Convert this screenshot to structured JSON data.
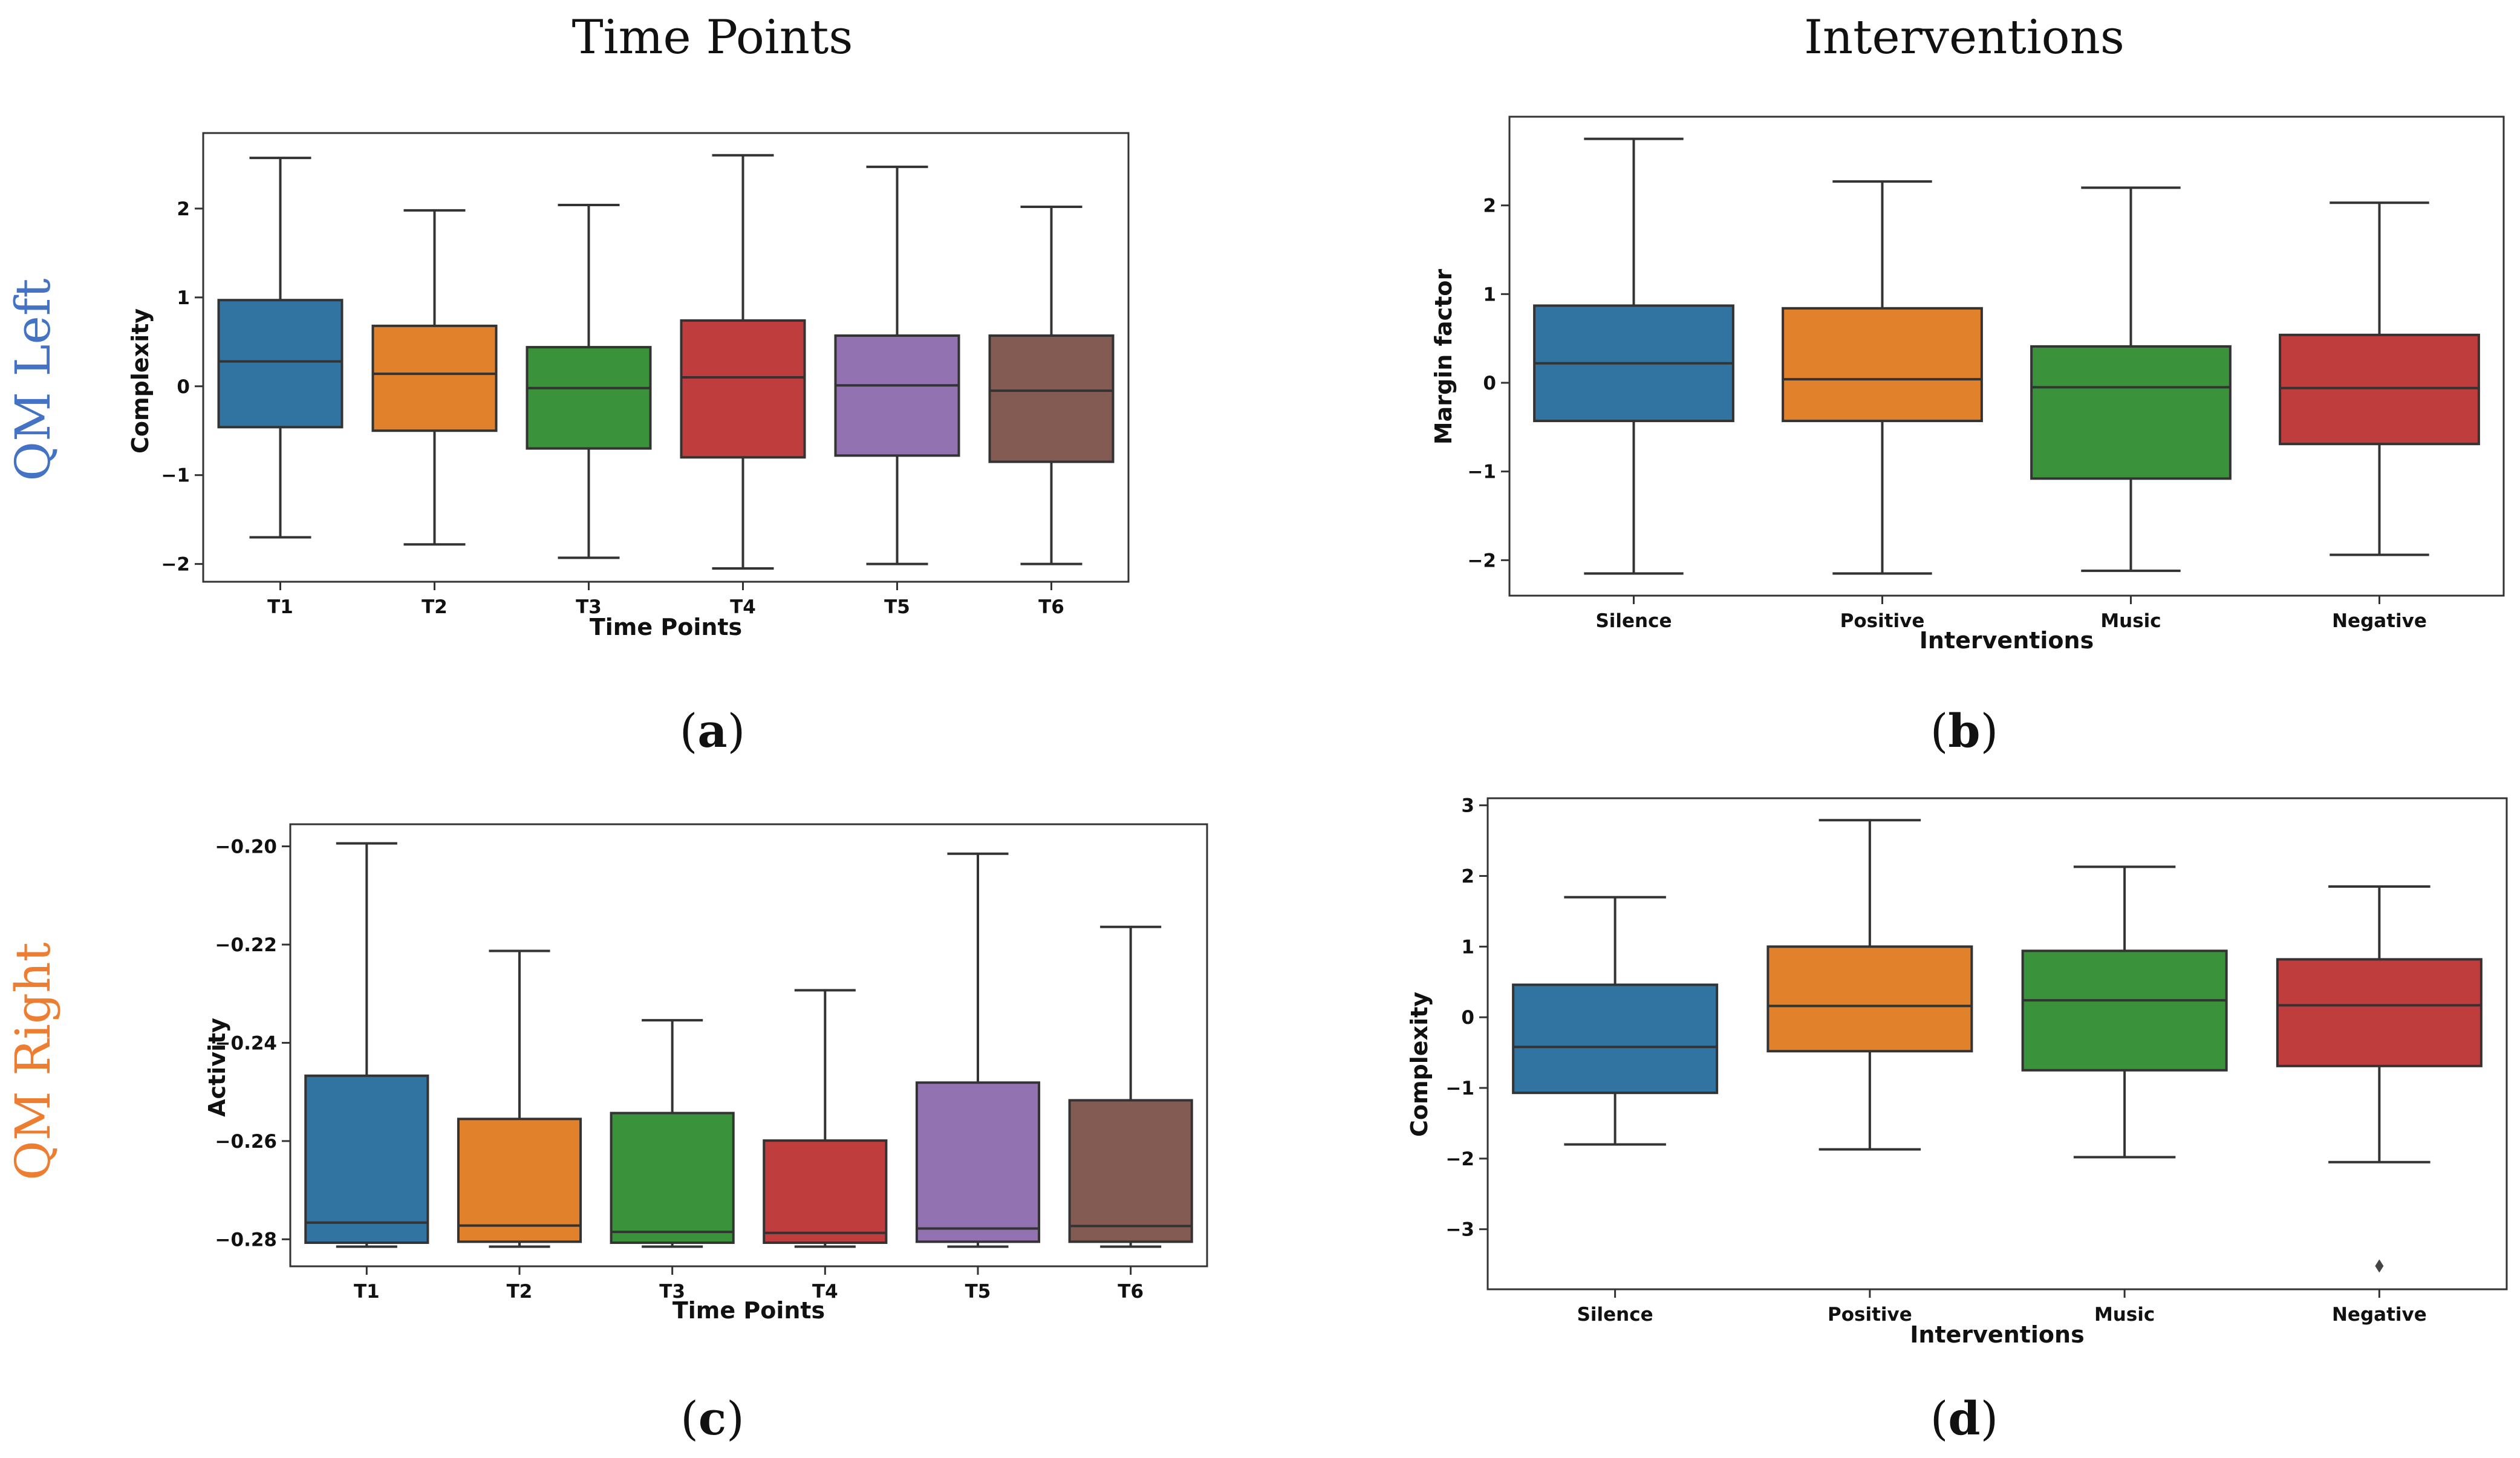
{
  "column_titles": [
    "Time Points",
    "Interventions"
  ],
  "row_labels": [
    {
      "text": "QM Left",
      "color": "#4472c4"
    },
    {
      "text": "QM Right",
      "color": "#ed7d31"
    }
  ],
  "panel_labels": [
    {
      "pre": "(",
      "letter": "a",
      "post": ")"
    },
    {
      "pre": "(",
      "letter": "b",
      "post": ")"
    },
    {
      "pre": "(",
      "letter": "c",
      "post": ")"
    },
    {
      "pre": "(",
      "letter": "d",
      "post": ")"
    }
  ],
  "palette": [
    "#3274a1",
    "#e1812c",
    "#3a923a",
    "#c03d3e",
    "#9372b2",
    "#845b53"
  ],
  "chart_data": [
    {
      "id": "a",
      "type": "box",
      "xlabel": "Time Points",
      "ylabel": "Complexity",
      "ylim": [
        -2.2,
        2.85
      ],
      "yticks": [
        -2,
        -1,
        0,
        1,
        2
      ],
      "yticklabels": [
        "−2",
        "−1",
        "0",
        "1",
        "2"
      ],
      "categories": [
        "T1",
        "T2",
        "T3",
        "T4",
        "T5",
        "T6"
      ],
      "boxes": [
        {
          "whislo": -1.7,
          "q1": -0.46,
          "med": 0.28,
          "q3": 0.97,
          "whishi": 2.57
        },
        {
          "whislo": -1.78,
          "q1": -0.5,
          "med": 0.14,
          "q3": 0.68,
          "whishi": 1.98
        },
        {
          "whislo": -1.93,
          "q1": -0.7,
          "med": -0.02,
          "q3": 0.44,
          "whishi": 2.04
        },
        {
          "whislo": -2.05,
          "q1": -0.8,
          "med": 0.1,
          "q3": 0.74,
          "whishi": 2.6
        },
        {
          "whislo": -2.0,
          "q1": -0.78,
          "med": 0.01,
          "q3": 0.57,
          "whishi": 2.47
        },
        {
          "whislo": -2.0,
          "q1": -0.85,
          "med": -0.05,
          "q3": 0.57,
          "whishi": 2.02
        }
      ],
      "outliers": []
    },
    {
      "id": "b",
      "type": "box",
      "xlabel": "Interventions",
      "ylabel": "Margin factor",
      "ylim": [
        -2.4,
        3.0
      ],
      "yticks": [
        -2,
        -1,
        0,
        1,
        2
      ],
      "yticklabels": [
        "−2",
        "−1",
        "0",
        "1",
        "2"
      ],
      "categories": [
        "Silence",
        "Positive",
        "Music",
        "Negative"
      ],
      "boxes": [
        {
          "whislo": -2.15,
          "q1": -0.43,
          "med": 0.22,
          "q3": 0.87,
          "whishi": 2.75
        },
        {
          "whislo": -2.15,
          "q1": -0.43,
          "med": 0.04,
          "q3": 0.84,
          "whishi": 2.27
        },
        {
          "whislo": -2.12,
          "q1": -1.08,
          "med": -0.05,
          "q3": 0.41,
          "whishi": 2.2
        },
        {
          "whislo": -1.94,
          "q1": -0.69,
          "med": -0.06,
          "q3": 0.54,
          "whishi": 2.03
        }
      ],
      "outliers": []
    },
    {
      "id": "c",
      "type": "box",
      "xlabel": "Time Points",
      "ylabel": "Activity",
      "ylim": [
        -0.2855,
        -0.1955
      ],
      "yticks": [
        -0.28,
        -0.26,
        -0.24,
        -0.22,
        -0.2
      ],
      "yticklabels": [
        "−0.28",
        "−0.26",
        "−0.24",
        "−0.22",
        "−0.20"
      ],
      "categories": [
        "T1",
        "T2",
        "T3",
        "T4",
        "T5",
        "T6"
      ],
      "boxes": [
        {
          "whislo": -0.2815,
          "q1": -0.2807,
          "med": -0.2766,
          "q3": -0.2467,
          "whishi": -0.1994
        },
        {
          "whislo": -0.2815,
          "q1": -0.2805,
          "med": -0.2772,
          "q3": -0.2555,
          "whishi": -0.2213
        },
        {
          "whislo": -0.2815,
          "q1": -0.2807,
          "med": -0.2785,
          "q3": -0.2543,
          "whishi": -0.2354
        },
        {
          "whislo": -0.2815,
          "q1": -0.2807,
          "med": -0.2787,
          "q3": -0.2599,
          "whishi": -0.2293
        },
        {
          "whislo": -0.2815,
          "q1": -0.2805,
          "med": -0.2778,
          "q3": -0.2481,
          "whishi": -0.2015
        },
        {
          "whislo": -0.2815,
          "q1": -0.2805,
          "med": -0.2773,
          "q3": -0.2517,
          "whishi": -0.2164
        }
      ],
      "outliers": []
    },
    {
      "id": "d",
      "type": "box",
      "xlabel": "Interventions",
      "ylabel": "Complexity",
      "ylim": [
        -3.85,
        3.1
      ],
      "yticks": [
        -3,
        -2,
        -1,
        0,
        1,
        2,
        3
      ],
      "yticklabels": [
        "−3",
        "−2",
        "−1",
        "0",
        "1",
        "2",
        "3"
      ],
      "categories": [
        "Silence",
        "Positive",
        "Music",
        "Negative"
      ],
      "boxes": [
        {
          "whislo": -1.8,
          "q1": -1.07,
          "med": -0.42,
          "q3": 0.46,
          "whishi": 1.7
        },
        {
          "whislo": -1.87,
          "q1": -0.48,
          "med": 0.16,
          "q3": 1.0,
          "whishi": 2.79
        },
        {
          "whislo": -1.98,
          "q1": -0.75,
          "med": 0.24,
          "q3": 0.94,
          "whishi": 2.13
        },
        {
          "whislo": -2.05,
          "q1": -0.69,
          "med": 0.17,
          "q3": 0.82,
          "whishi": 1.85
        }
      ],
      "outliers": [
        {
          "category": "Negative",
          "value": -3.52
        }
      ]
    }
  ]
}
